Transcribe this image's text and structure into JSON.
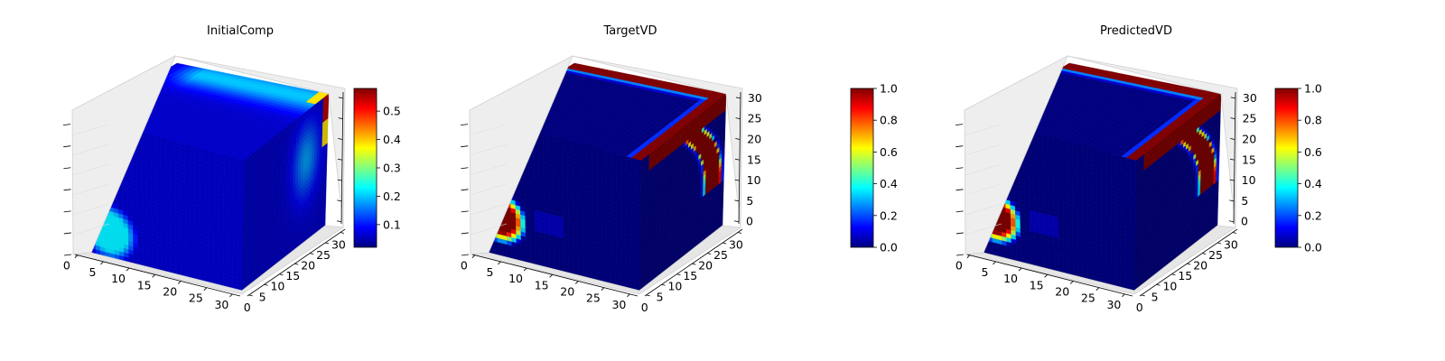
{
  "colors": {
    "jet_stops": [
      "#00007f",
      "#0000ff",
      "#007fff",
      "#00ffff",
      "#7fff7f",
      "#ffff00",
      "#ff7f00",
      "#ff0000",
      "#7f0000"
    ],
    "pane": "#eeeeee",
    "background": "#ffffff"
  },
  "chart_data": [
    {
      "type": "voxel-3d",
      "title": "InitialComp",
      "x_ticks": [
        "0",
        "5",
        "10",
        "15",
        "20",
        "25",
        "30"
      ],
      "y_ticks": [
        "0",
        "5",
        "10",
        "15",
        "20",
        "25",
        "30"
      ],
      "z_ticks": [],
      "colorbar": {
        "min": 0.02,
        "max": 0.58,
        "ticks": [
          "0.1",
          "0.2",
          "0.3",
          "0.4",
          "0.5"
        ],
        "tick_values": [
          0.1,
          0.2,
          0.3,
          0.4,
          0.5
        ]
      },
      "field": {
        "base": 0.06,
        "front_blob": {
          "x": 4,
          "z": 6,
          "radius": 7,
          "value": 0.22
        },
        "top_band_value": 0.2,
        "right_band_value": 0.18,
        "edge_peak_value": 0.55
      }
    },
    {
      "type": "voxel-3d",
      "title": "TargetVD",
      "x_ticks": [
        "0",
        "5",
        "10",
        "15",
        "20",
        "25",
        "30"
      ],
      "y_ticks": [
        "0",
        "5",
        "10",
        "15",
        "20",
        "25",
        "30"
      ],
      "z_ticks": [
        "0",
        "5",
        "10",
        "15",
        "20",
        "25",
        "30"
      ],
      "colorbar": {
        "min": 0.0,
        "max": 1.0,
        "ticks": [
          "0.0",
          "0.2",
          "0.4",
          "0.6",
          "0.8",
          "1.0"
        ],
        "tick_values": [
          0.0,
          0.2,
          0.4,
          0.6,
          0.8,
          1.0
        ]
      },
      "field": {
        "base": 0.0,
        "front_blob": {
          "x": 3,
          "z": 9,
          "radius": 5.5,
          "value": 1.0
        },
        "top_band_value": 1.0,
        "right_band_value": 1.0,
        "edge_peak_value": 1.0
      }
    },
    {
      "type": "voxel-3d",
      "title": "PredictedVD",
      "x_ticks": [
        "0",
        "5",
        "10",
        "15",
        "20",
        "25",
        "30"
      ],
      "y_ticks": [
        "0",
        "5",
        "10",
        "15",
        "20",
        "25",
        "30"
      ],
      "z_ticks": [
        "0",
        "5",
        "10",
        "15",
        "20",
        "25",
        "30"
      ],
      "colorbar": {
        "min": 0.0,
        "max": 1.0,
        "ticks": [
          "0.0",
          "0.2",
          "0.4",
          "0.6",
          "0.8",
          "1.0"
        ],
        "tick_values": [
          0.0,
          0.2,
          0.4,
          0.6,
          0.8,
          1.0
        ]
      },
      "field": {
        "base": 0.0,
        "front_blob": {
          "x": 3,
          "z": 9,
          "radius": 5.5,
          "value": 1.0
        },
        "top_band_value": 1.0,
        "right_band_value": 1.0,
        "edge_peak_value": 1.0
      }
    }
  ]
}
